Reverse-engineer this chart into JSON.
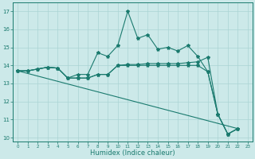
{
  "xlabel": "Humidex (Indice chaleur)",
  "xlim": [
    -0.5,
    23.5
  ],
  "ylim": [
    9.8,
    17.5
  ],
  "yticks": [
    10,
    11,
    12,
    13,
    14,
    15,
    16,
    17
  ],
  "xticks": [
    0,
    1,
    2,
    3,
    4,
    5,
    6,
    7,
    8,
    9,
    10,
    11,
    12,
    13,
    14,
    15,
    16,
    17,
    18,
    19,
    20,
    21,
    22,
    23
  ],
  "bg_color": "#cce9e9",
  "line_color": "#1a7a6e",
  "grid_color": "#aad4d4",
  "line1": [
    [
      0,
      13.7
    ],
    [
      1,
      13.7
    ],
    [
      2,
      13.8
    ],
    [
      3,
      13.9
    ],
    [
      4,
      13.85
    ],
    [
      5,
      13.3
    ],
    [
      6,
      13.5
    ],
    [
      7,
      13.5
    ],
    [
      8,
      14.7
    ],
    [
      9,
      14.5
    ],
    [
      10,
      15.1
    ],
    [
      11,
      17.0
    ],
    [
      12,
      15.5
    ],
    [
      13,
      15.7
    ],
    [
      14,
      14.9
    ],
    [
      15,
      15.0
    ],
    [
      16,
      14.8
    ],
    [
      17,
      15.1
    ],
    [
      18,
      14.5
    ],
    [
      19,
      13.65
    ],
    [
      20,
      11.3
    ],
    [
      21,
      10.2
    ],
    [
      22,
      10.5
    ]
  ],
  "line2": [
    [
      0,
      13.7
    ],
    [
      1,
      13.7
    ],
    [
      2,
      13.8
    ],
    [
      3,
      13.9
    ],
    [
      4,
      13.85
    ],
    [
      5,
      13.3
    ],
    [
      6,
      13.3
    ],
    [
      7,
      13.3
    ],
    [
      8,
      13.5
    ],
    [
      9,
      13.5
    ],
    [
      10,
      14.0
    ],
    [
      11,
      14.05
    ],
    [
      12,
      14.05
    ],
    [
      13,
      14.1
    ],
    [
      14,
      14.1
    ],
    [
      15,
      14.1
    ],
    [
      16,
      14.1
    ],
    [
      17,
      14.15
    ],
    [
      18,
      14.2
    ],
    [
      19,
      14.45
    ],
    [
      20,
      11.3
    ],
    [
      21,
      10.2
    ],
    [
      22,
      10.5
    ]
  ],
  "line3": [
    [
      0,
      13.7
    ],
    [
      1,
      13.7
    ],
    [
      2,
      13.8
    ],
    [
      3,
      13.9
    ],
    [
      4,
      13.85
    ],
    [
      5,
      13.3
    ],
    [
      6,
      13.3
    ],
    [
      7,
      13.3
    ],
    [
      8,
      13.5
    ],
    [
      9,
      13.5
    ],
    [
      10,
      14.0
    ],
    [
      11,
      14.0
    ],
    [
      12,
      14.0
    ],
    [
      13,
      14.0
    ],
    [
      14,
      14.0
    ],
    [
      15,
      14.0
    ],
    [
      16,
      14.0
    ],
    [
      17,
      14.0
    ],
    [
      18,
      14.0
    ],
    [
      19,
      13.65
    ],
    [
      20,
      11.3
    ],
    [
      21,
      10.2
    ],
    [
      22,
      10.5
    ]
  ],
  "line4_x": [
    0,
    22
  ],
  "line4_y": [
    13.7,
    10.5
  ]
}
